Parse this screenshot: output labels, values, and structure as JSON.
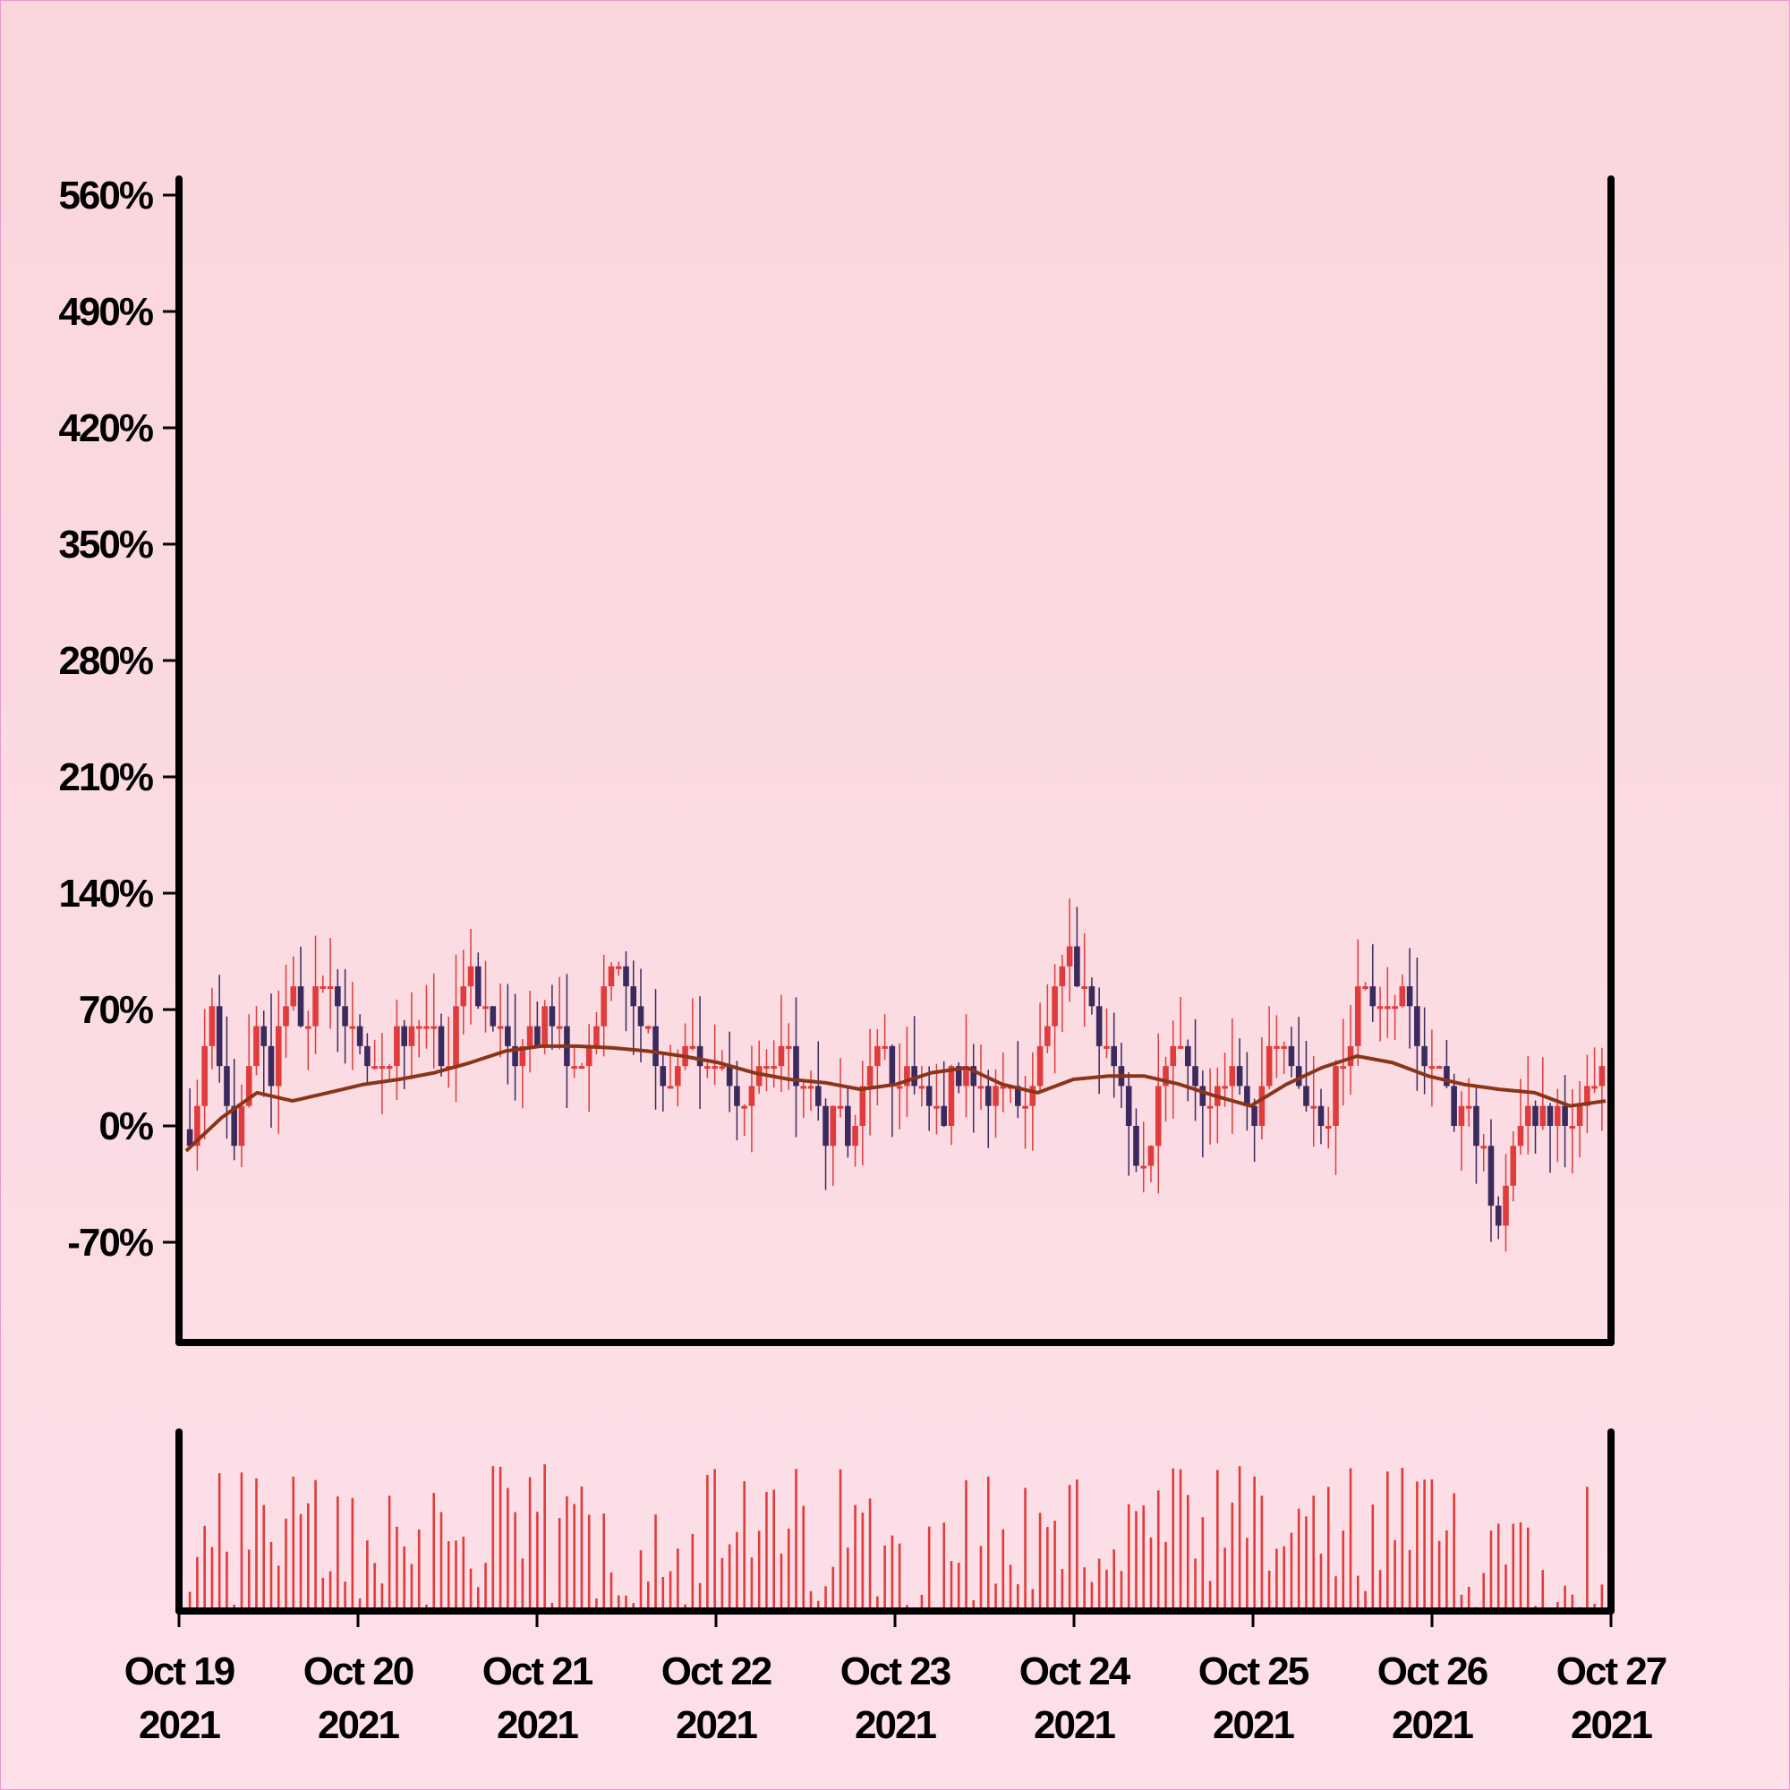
{
  "chart_data": {
    "type": "candlestick",
    "title": "",
    "xlabel": "",
    "ylabel": "",
    "y_unit": "%",
    "ylim": [
      -160,
      570
    ],
    "yticks": [
      -70,
      0,
      70,
      140,
      210,
      280,
      350,
      420,
      490,
      560
    ],
    "ytick_labels": [
      "-70%",
      "0%",
      "70%",
      "140%",
      "210%",
      "280%",
      "350%",
      "420%",
      "490%",
      "560%"
    ],
    "xlim": [
      "2021-10-19",
      "2021-10-27"
    ],
    "xticks": [
      {
        "date": "2021-10-19",
        "line1": "Oct 19",
        "line2": "2021"
      },
      {
        "date": "2021-10-20",
        "line1": "Oct 20",
        "line2": "2021"
      },
      {
        "date": "2021-10-21",
        "line1": "Oct 21",
        "line2": "2021"
      },
      {
        "date": "2021-10-22",
        "line1": "Oct 22",
        "line2": "2021"
      },
      {
        "date": "2021-10-23",
        "line1": "Oct 23",
        "line2": "2021"
      },
      {
        "date": "2021-10-24",
        "line1": "Oct 24",
        "line2": "2021"
      },
      {
        "date": "2021-10-25",
        "line1": "Oct 25",
        "line2": "2021"
      },
      {
        "date": "2021-10-26",
        "line1": "Oct 26",
        "line2": "2021"
      },
      {
        "date": "2021-10-27",
        "line1": "Oct 27",
        "line2": "2021"
      }
    ],
    "candle_interval_hours": 1,
    "close_path": [
      -20,
      40,
      60,
      20,
      -10,
      30,
      60,
      30,
      70,
      80,
      60,
      80,
      85,
      70,
      60,
      50,
      35,
      20,
      60,
      50,
      70,
      60,
      30,
      60,
      90,
      80,
      60,
      50,
      40,
      50,
      60,
      70,
      50,
      35,
      45,
      60,
      90,
      100,
      80,
      70,
      50,
      30,
      35,
      50,
      40,
      30,
      35,
      20,
      10,
      30,
      40,
      50,
      30,
      20,
      10,
      0,
      10,
      -20,
      20,
      50,
      40,
      20,
      30,
      20,
      10,
      0,
      30,
      40,
      20,
      10,
      30,
      20,
      10,
      40,
      60,
      85,
      95,
      80,
      70,
      50,
      35,
      0,
      -30,
      -20,
      30,
      50,
      40,
      20,
      10,
      30,
      35,
      20,
      10,
      40,
      50,
      40,
      20,
      10,
      0,
      30,
      50,
      80,
      85,
      70,
      85,
      75,
      50,
      40,
      30,
      0,
      20,
      -10,
      -30,
      -60,
      -30,
      0,
      10,
      0,
      10,
      0,
      10,
      20,
      40
    ],
    "ma_path": [
      -15,
      5,
      20,
      15,
      20,
      25,
      28,
      32,
      38,
      45,
      48,
      48,
      47,
      45,
      42,
      38,
      32,
      28,
      26,
      22,
      25,
      32,
      35,
      25,
      20,
      28,
      30,
      30,
      25,
      18,
      12,
      25,
      35,
      42,
      38,
      30,
      25,
      22,
      20,
      12,
      15
    ],
    "colors": {
      "up": "#e03c3c",
      "down": "#3b2a5e",
      "moving_average": "#8a3519",
      "volume": "#e03c3c",
      "axes": "#000000"
    }
  }
}
